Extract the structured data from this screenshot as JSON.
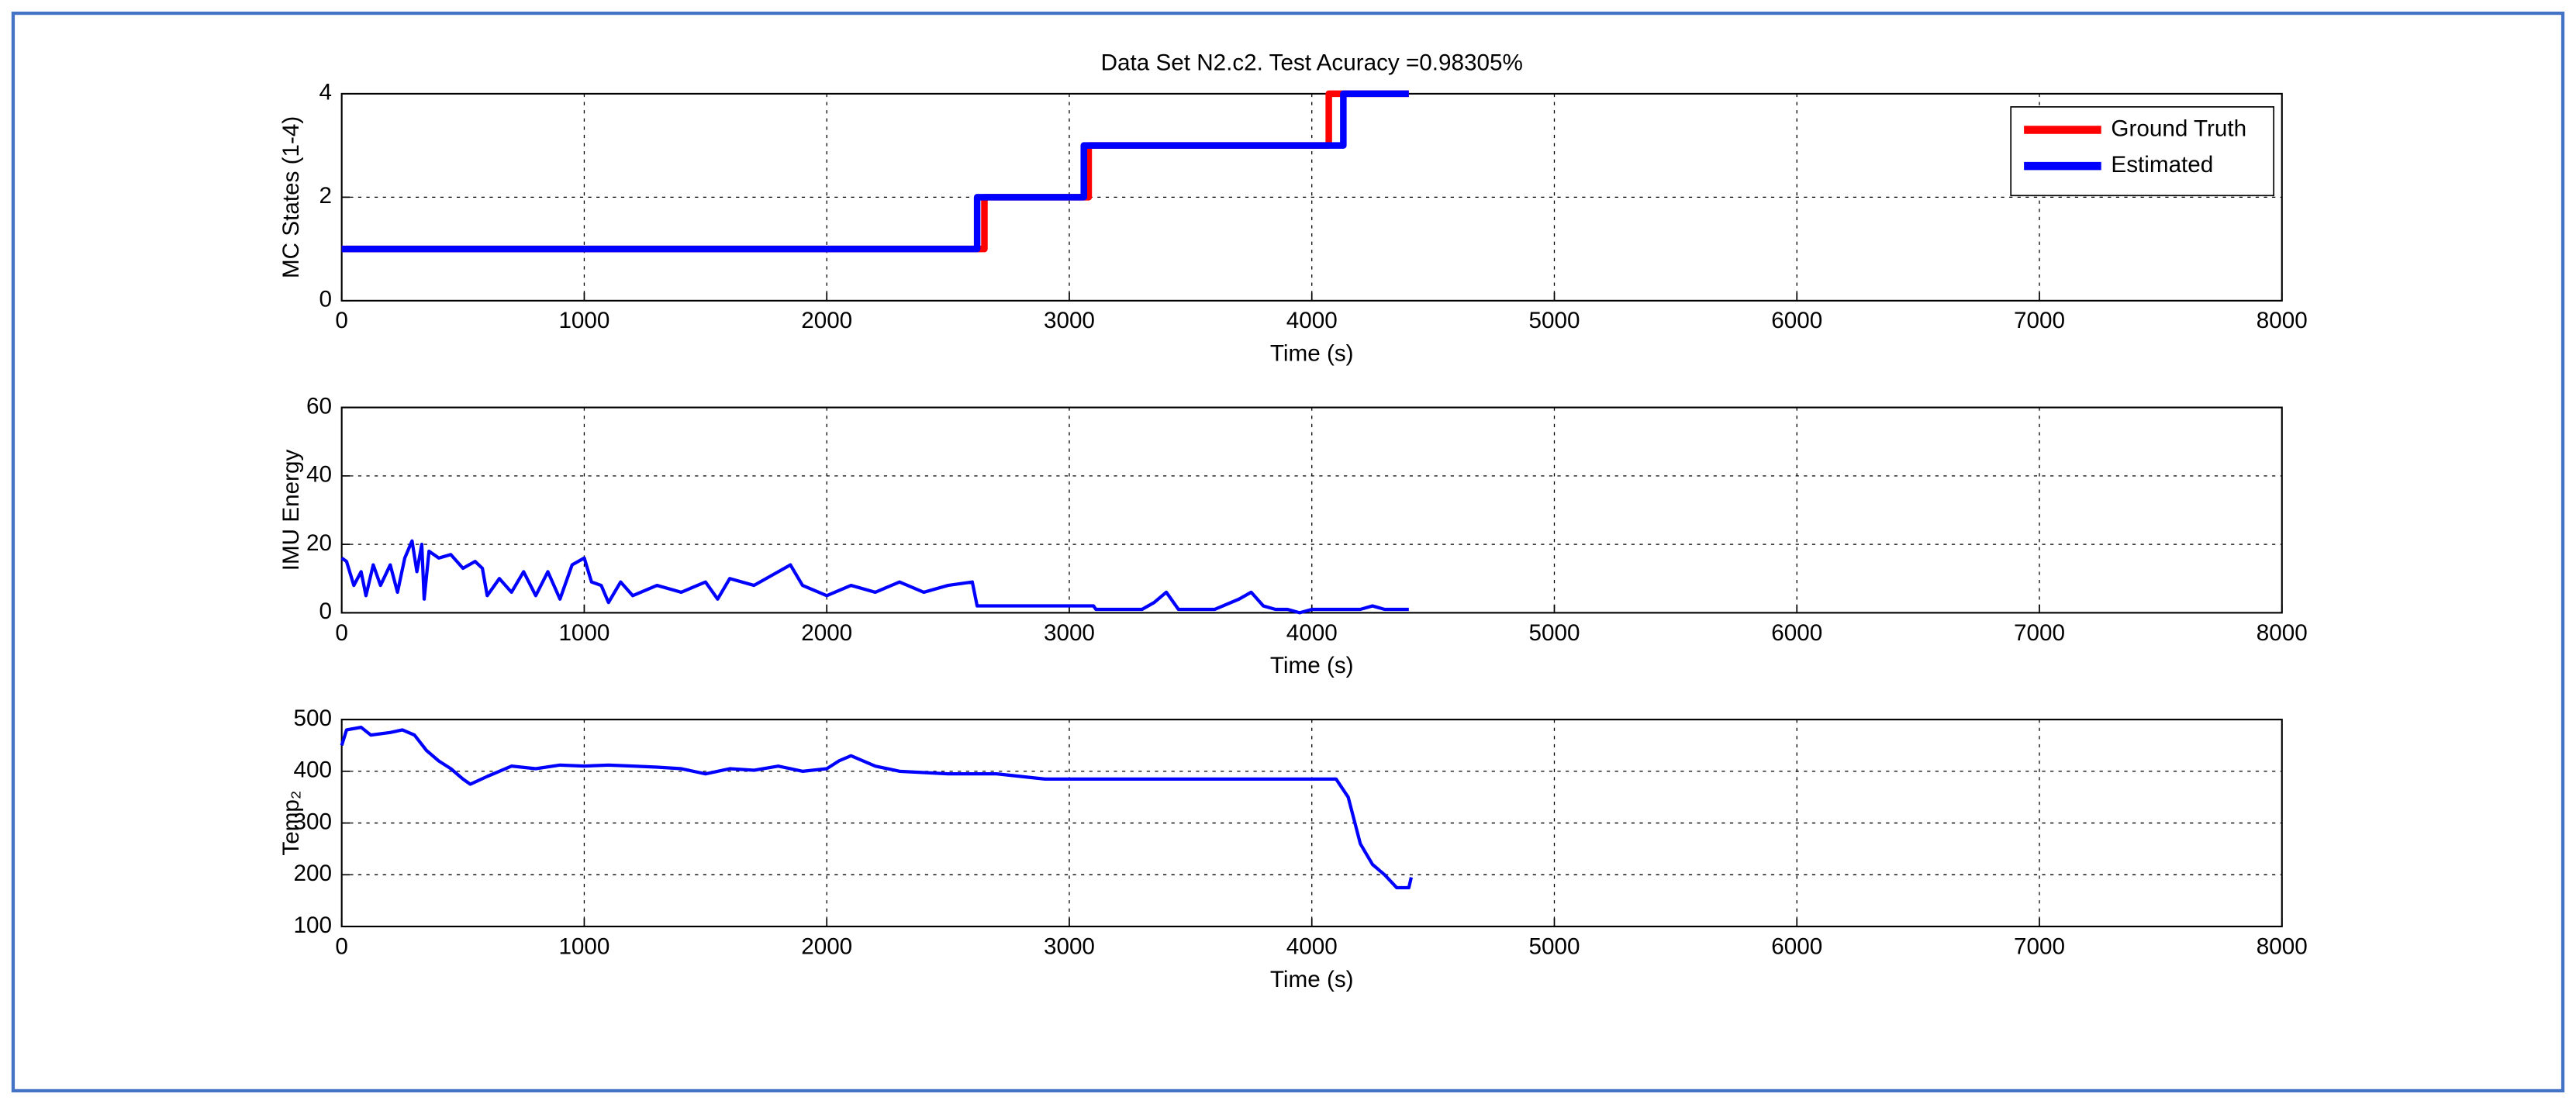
{
  "chart_data": [
    {
      "type": "line",
      "title": "Data Set N2.c2. Test Acuracy =0.98305%",
      "xlabel": "Time (s)",
      "ylabel": "MC States (1-4)",
      "x": [
        0,
        2620,
        2620,
        2650,
        2650,
        3060,
        3060,
        3080,
        3080,
        4070,
        4070,
        4130,
        4130,
        4400
      ],
      "series": [
        {
          "name": "Ground Truth",
          "color": "#ff0000",
          "values": [
            1,
            1,
            1,
            1,
            2,
            2,
            2,
            2,
            3,
            3,
            4,
            4,
            4,
            4
          ]
        },
        {
          "name": "Estimated",
          "color": "#0000ff",
          "values": [
            1,
            1,
            2,
            2,
            2,
            2,
            3,
            3,
            3,
            3,
            3,
            3,
            4,
            4
          ]
        }
      ],
      "xlim": [
        0,
        8000
      ],
      "xticks": [
        0,
        1000,
        2000,
        3000,
        4000,
        5000,
        6000,
        7000,
        8000
      ],
      "ylim": [
        0,
        4
      ],
      "yticks": [
        0,
        2,
        4
      ],
      "grid": true,
      "legend": "upper right"
    },
    {
      "type": "line",
      "xlabel": "Time (s)",
      "ylabel": "IMU Energy",
      "color": "#0000ff",
      "x": [
        0,
        20,
        50,
        80,
        100,
        130,
        160,
        200,
        230,
        260,
        290,
        310,
        330,
        340,
        360,
        400,
        450,
        500,
        550,
        580,
        600,
        650,
        700,
        750,
        800,
        850,
        900,
        950,
        1000,
        1030,
        1070,
        1100,
        1150,
        1200,
        1300,
        1400,
        1500,
        1550,
        1600,
        1700,
        1800,
        1850,
        1900,
        2000,
        2100,
        2200,
        2300,
        2400,
        2500,
        2600,
        2620,
        2700,
        3000,
        3100,
        3110,
        3300,
        3350,
        3400,
        3450,
        3600,
        3700,
        3750,
        3800,
        3850,
        3900,
        3950,
        4000,
        4100,
        4200,
        4250,
        4300,
        4400
      ],
      "values": [
        16,
        15,
        8,
        12,
        5,
        14,
        8,
        14,
        6,
        16,
        21,
        12,
        20,
        4,
        18,
        16,
        17,
        13,
        15,
        13,
        5,
        10,
        6,
        12,
        5,
        12,
        4,
        14,
        16,
        9,
        8,
        3,
        9,
        5,
        8,
        6,
        9,
        4,
        10,
        8,
        12,
        14,
        8,
        5,
        8,
        6,
        9,
        6,
        8,
        9,
        2,
        2,
        2,
        2,
        1,
        1,
        3,
        6,
        1,
        1,
        4,
        6,
        2,
        1,
        1,
        0,
        1,
        1,
        1,
        2,
        1,
        1
      ],
      "xlim": [
        0,
        8000
      ],
      "xticks": [
        0,
        1000,
        2000,
        3000,
        4000,
        5000,
        6000,
        7000,
        8000
      ],
      "ylim": [
        0,
        60
      ],
      "yticks": [
        0,
        20,
        40,
        60
      ],
      "grid": true
    },
    {
      "type": "line",
      "xlabel": "Time (s)",
      "ylabel": "Temp₂",
      "color": "#0000ff",
      "x": [
        0,
        20,
        80,
        120,
        200,
        250,
        300,
        350,
        400,
        450,
        500,
        530,
        600,
        700,
        800,
        900,
        1000,
        1100,
        1200,
        1300,
        1400,
        1500,
        1600,
        1700,
        1800,
        1900,
        2000,
        2050,
        2100,
        2200,
        2300,
        2500,
        2700,
        2800,
        2900,
        3500,
        4000,
        4100,
        4150,
        4200,
        4250,
        4300,
        4350,
        4400,
        4410
      ],
      "values": [
        450,
        480,
        485,
        470,
        475,
        480,
        470,
        440,
        420,
        405,
        385,
        375,
        390,
        410,
        405,
        412,
        410,
        412,
        410,
        408,
        405,
        395,
        405,
        402,
        410,
        400,
        405,
        420,
        430,
        410,
        400,
        395,
        395,
        390,
        385,
        385,
        385,
        385,
        350,
        260,
        220,
        200,
        175,
        175,
        195
      ],
      "xlim": [
        0,
        8000
      ],
      "xticks": [
        0,
        1000,
        2000,
        3000,
        4000,
        5000,
        6000,
        7000,
        8000
      ],
      "ylim": [
        100,
        500
      ],
      "yticks": [
        100,
        200,
        300,
        400,
        500
      ],
      "grid": true
    }
  ]
}
